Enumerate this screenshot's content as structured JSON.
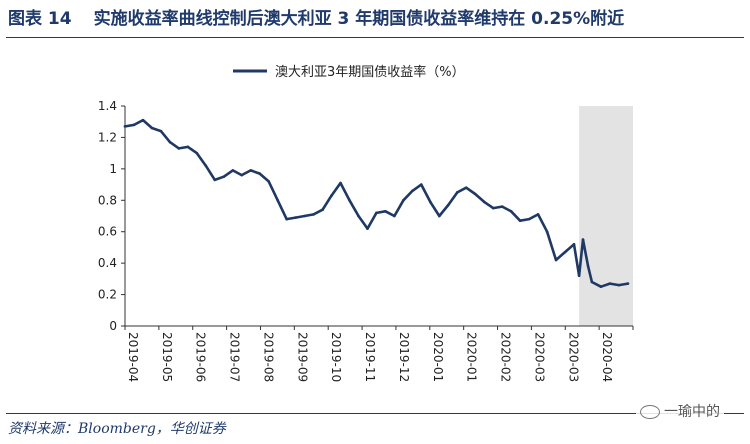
{
  "figure": {
    "label": "图表 14",
    "title": "实施收益率曲线控制后澳大利亚 3 年期国债收益率维持在 0.25%附近",
    "source": "资料来源：Bloomberg，华创证券",
    "watermark": "一瑜中的"
  },
  "chart_data": {
    "type": "line",
    "series": [
      {
        "name": "澳大利亚3年期国债收益率（%）",
        "color": "#1f3864",
        "x": [
          "2019-04-01",
          "2019-04-08",
          "2019-04-15",
          "2019-04-22",
          "2019-04-29",
          "2019-05-06",
          "2019-05-13",
          "2019-05-20",
          "2019-05-27",
          "2019-06-03",
          "2019-06-10",
          "2019-06-17",
          "2019-06-24",
          "2019-07-01",
          "2019-07-08",
          "2019-07-15",
          "2019-07-22",
          "2019-07-29",
          "2019-08-05",
          "2019-08-12",
          "2019-08-19",
          "2019-08-26",
          "2019-09-02",
          "2019-09-09",
          "2019-09-16",
          "2019-09-23",
          "2019-09-30",
          "2019-10-07",
          "2019-10-14",
          "2019-10-21",
          "2019-10-28",
          "2019-11-04",
          "2019-11-11",
          "2019-11-18",
          "2019-11-25",
          "2019-12-02",
          "2019-12-09",
          "2019-12-16",
          "2019-12-23",
          "2019-12-30",
          "2020-01-06",
          "2020-01-13",
          "2020-01-20",
          "2020-01-27",
          "2020-02-03",
          "2020-02-10",
          "2020-02-17",
          "2020-02-24",
          "2020-03-02",
          "2020-03-09",
          "2020-03-16",
          "2020-03-20",
          "2020-03-23",
          "2020-03-27",
          "2020-03-30",
          "2020-04-06",
          "2020-04-13",
          "2020-04-20",
          "2020-04-27"
        ],
        "values": [
          1.27,
          1.28,
          1.31,
          1.26,
          1.24,
          1.17,
          1.13,
          1.14,
          1.1,
          1.02,
          0.93,
          0.95,
          0.99,
          0.96,
          0.99,
          0.97,
          0.92,
          0.8,
          0.68,
          0.69,
          0.7,
          0.71,
          0.74,
          0.83,
          0.91,
          0.8,
          0.7,
          0.62,
          0.72,
          0.73,
          0.7,
          0.8,
          0.86,
          0.9,
          0.79,
          0.7,
          0.77,
          0.85,
          0.88,
          0.84,
          0.79,
          0.75,
          0.76,
          0.73,
          0.67,
          0.68,
          0.71,
          0.6,
          0.42,
          0.47,
          0.52,
          0.32,
          0.55,
          0.38,
          0.28,
          0.25,
          0.27,
          0.26,
          0.27
        ]
      }
    ],
    "x_tick_labels": [
      "2019-04",
      "2019-05",
      "2019-06",
      "2019-07",
      "2019-08",
      "2019-09",
      "2019-10",
      "2019-11",
      "2019-12",
      "2020-01",
      "2020-01",
      "2020-02",
      "2020-03",
      "2020-03",
      "2020-04"
    ],
    "y_ticks": [
      0,
      0.2,
      0.4,
      0.6,
      0.8,
      1,
      1.2,
      1.4
    ],
    "ylim": [
      0,
      1.4
    ],
    "xlim": [
      "2019-04-01",
      "2020-05-01"
    ],
    "shaded_region": {
      "from": "2020-03-20",
      "to": "2020-05-01",
      "color": "#e3e3e3"
    },
    "legend_position": "top-center",
    "grid": false
  }
}
